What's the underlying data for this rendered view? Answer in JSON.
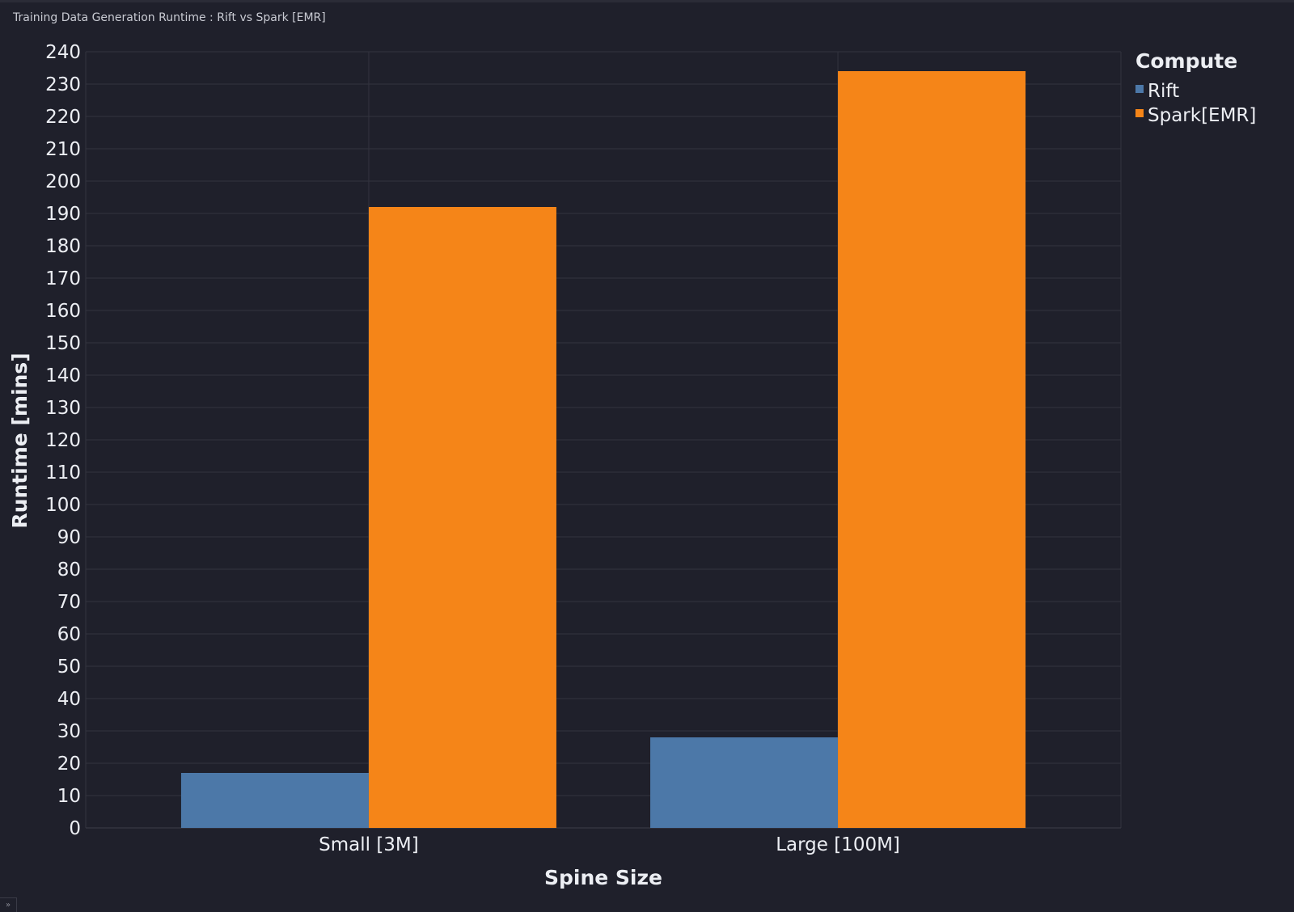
{
  "chart_title": "Training Data Generation Runtime : Rift vs Spark [EMR]",
  "colors": {
    "background": "#1f202b",
    "grid": "#33343f",
    "text": "#eceef3"
  },
  "chart_data": {
    "type": "bar",
    "title": "Training Data Generation Runtime : Rift vs Spark [EMR]",
    "xlabel": "Spine Size",
    "ylabel": "Runtime [mins]",
    "categories": [
      "Small [3M]",
      "Large [100M]"
    ],
    "series": [
      {
        "name": "Rift",
        "color": "#4c78a8",
        "values": [
          17,
          28
        ]
      },
      {
        "name": "Spark[EMR]",
        "color": "#f58518",
        "values": [
          192,
          234
        ]
      }
    ],
    "ylim": [
      0,
      240
    ],
    "yticks": [
      0,
      10,
      20,
      30,
      40,
      50,
      60,
      70,
      80,
      90,
      100,
      110,
      120,
      130,
      140,
      150,
      160,
      170,
      180,
      190,
      200,
      210,
      220,
      230,
      240
    ],
    "grid": true,
    "legend": {
      "title": "Compute",
      "position": "top-right"
    }
  },
  "corner_glyph": "»"
}
